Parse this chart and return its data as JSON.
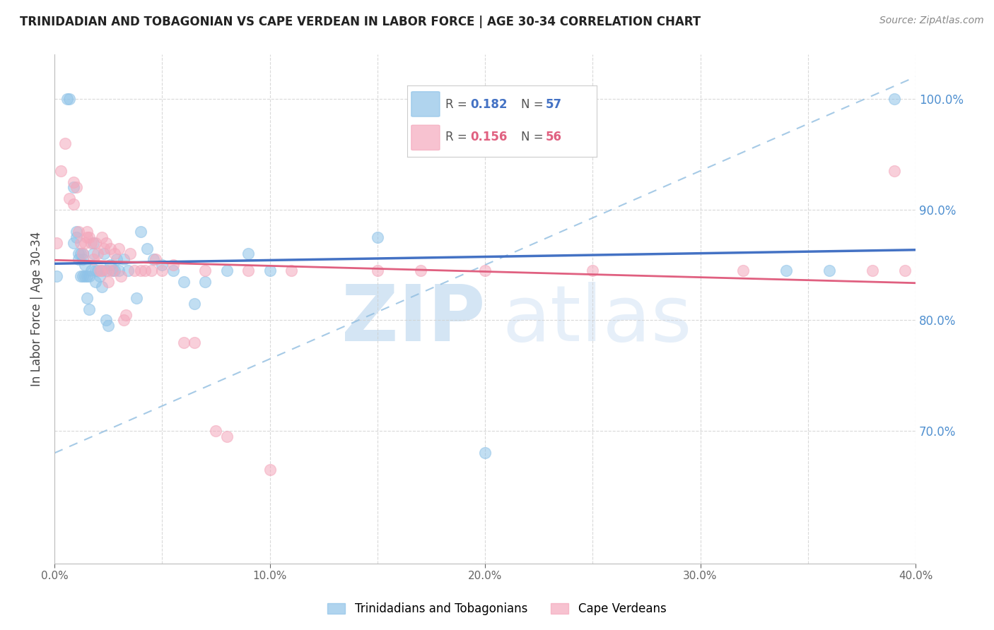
{
  "title": "TRINIDADIAN AND TOBAGONIAN VS CAPE VERDEAN IN LABOR FORCE | AGE 30-34 CORRELATION CHART",
  "source": "Source: ZipAtlas.com",
  "ylabel": "In Labor Force | Age 30-34",
  "xlim": [
    0.0,
    0.4
  ],
  "ylim": [
    0.58,
    1.04
  ],
  "ytick_positions": [
    0.7,
    0.8,
    0.9,
    1.0
  ],
  "ytick_labels": [
    "70.0%",
    "80.0%",
    "90.0%",
    "100.0%"
  ],
  "xtick_positions": [
    0.0,
    0.1,
    0.2,
    0.3,
    0.4
  ],
  "xtick_labels": [
    "0.0%",
    "10.0%",
    "20.0%",
    "30.0%",
    "40.0%"
  ],
  "blue_color": "#8fc3e8",
  "pink_color": "#f4a8bc",
  "trend_blue_color": "#4472c4",
  "trend_pink_color": "#e06080",
  "grid_color": "#d0d0d0",
  "blue_scatter_x": [
    0.001,
    0.006,
    0.007,
    0.009,
    0.009,
    0.01,
    0.01,
    0.011,
    0.011,
    0.012,
    0.012,
    0.013,
    0.013,
    0.013,
    0.014,
    0.014,
    0.015,
    0.015,
    0.016,
    0.016,
    0.017,
    0.018,
    0.018,
    0.019,
    0.019,
    0.02,
    0.021,
    0.022,
    0.022,
    0.023,
    0.024,
    0.024,
    0.025,
    0.026,
    0.027,
    0.028,
    0.029,
    0.03,
    0.032,
    0.034,
    0.038,
    0.04,
    0.043,
    0.046,
    0.05,
    0.055,
    0.06,
    0.065,
    0.07,
    0.08,
    0.09,
    0.1,
    0.15,
    0.2,
    0.34,
    0.36,
    0.39
  ],
  "blue_scatter_y": [
    0.84,
    1.0,
    1.0,
    0.87,
    0.92,
    0.875,
    0.88,
    0.855,
    0.86,
    0.84,
    0.86,
    0.84,
    0.855,
    0.86,
    0.84,
    0.85,
    0.82,
    0.84,
    0.81,
    0.84,
    0.845,
    0.86,
    0.87,
    0.835,
    0.845,
    0.845,
    0.84,
    0.83,
    0.845,
    0.86,
    0.845,
    0.8,
    0.795,
    0.85,
    0.845,
    0.845,
    0.855,
    0.845,
    0.855,
    0.845,
    0.82,
    0.88,
    0.865,
    0.855,
    0.85,
    0.845,
    0.835,
    0.815,
    0.835,
    0.845,
    0.86,
    0.845,
    0.875,
    0.68,
    0.845,
    0.845,
    1.0
  ],
  "pink_scatter_x": [
    0.001,
    0.003,
    0.005,
    0.007,
    0.009,
    0.009,
    0.01,
    0.011,
    0.012,
    0.013,
    0.014,
    0.015,
    0.015,
    0.016,
    0.017,
    0.018,
    0.019,
    0.02,
    0.021,
    0.022,
    0.022,
    0.023,
    0.024,
    0.025,
    0.025,
    0.026,
    0.027,
    0.028,
    0.03,
    0.031,
    0.032,
    0.033,
    0.035,
    0.037,
    0.04,
    0.042,
    0.045,
    0.047,
    0.05,
    0.055,
    0.06,
    0.065,
    0.07,
    0.075,
    0.08,
    0.09,
    0.1,
    0.11,
    0.15,
    0.17,
    0.2,
    0.25,
    0.32,
    0.38,
    0.39,
    0.395
  ],
  "pink_scatter_y": [
    0.87,
    0.935,
    0.96,
    0.91,
    0.905,
    0.925,
    0.92,
    0.88,
    0.87,
    0.86,
    0.87,
    0.875,
    0.88,
    0.875,
    0.87,
    0.855,
    0.87,
    0.86,
    0.845,
    0.875,
    0.845,
    0.865,
    0.87,
    0.835,
    0.845,
    0.865,
    0.845,
    0.86,
    0.865,
    0.84,
    0.8,
    0.805,
    0.86,
    0.845,
    0.845,
    0.845,
    0.845,
    0.855,
    0.845,
    0.85,
    0.78,
    0.78,
    0.845,
    0.7,
    0.695,
    0.845,
    0.665,
    0.845,
    0.845,
    0.845,
    0.845,
    0.845,
    0.845,
    0.845,
    0.935,
    0.845
  ],
  "ref_line_x": [
    0.0,
    0.4
  ],
  "ref_line_y": [
    0.68,
    1.02
  ],
  "trend_blue_x0": 0.0,
  "trend_blue_x1": 0.4,
  "trend_pink_x0": 0.0,
  "trend_pink_x1": 0.4,
  "legend_blue_r": "0.182",
  "legend_blue_n": "57",
  "legend_pink_r": "0.156",
  "legend_pink_n": "56"
}
